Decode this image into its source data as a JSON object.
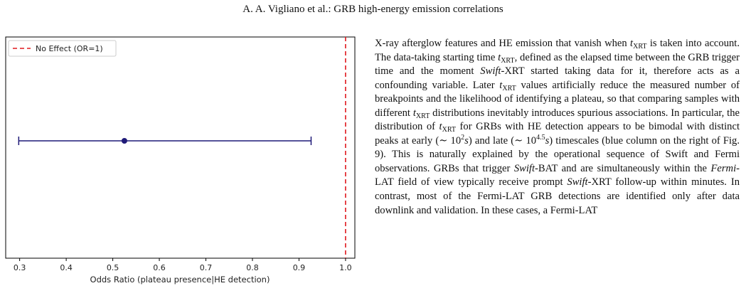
{
  "header": "A. A. Vigliano et al.: GRB high-energy emission correlations",
  "chart_data": {
    "type": "forest",
    "point": 0.525,
    "ci": [
      0.298,
      0.926
    ],
    "reference_line": {
      "value": 1.0,
      "label": "No Effect (OR=1)",
      "color": "#e0191e",
      "style": "dashed"
    },
    "xlim": [
      0.27,
      1.02
    ],
    "xticks": [
      0.3,
      0.4,
      0.5,
      0.6,
      0.7,
      0.8,
      0.9,
      1.0
    ],
    "xtick_labels": [
      "0.3",
      "0.4",
      "0.5",
      "0.6",
      "0.7",
      "0.8",
      "0.9",
      "1.0"
    ],
    "xlabel": "Odds Ratio (plateau presence|HE detection)",
    "series_color": "#1f1a78",
    "legend_placement": "top-left",
    "grid": false
  },
  "body": {
    "t1": "X-ray afterglow features and HE emission that vanish when ",
    "v1": "t",
    "s1": "XRT",
    "t2": " is taken into account. The data-taking starting time ",
    "v2": "t",
    "s2": "XRT",
    "t3": ", defined as the elapsed time between the GRB trigger time and the moment ",
    "e1": "Swift",
    "t4": "-XRT started taking data for it, therefore acts as a confounding variable. Later ",
    "v3": "t",
    "s3": "XRT",
    "t5": " values artificially reduce the measured number of breakpoints and the likelihood of identifying a plateau, so that comparing samples with different ",
    "v4": "t",
    "s4": "XRT",
    "t6": " distributions inevitably introduces spurious associations. In particular, the distribution of ",
    "v5": "t",
    "s5": "XRT",
    "t7": " for GRBs with HE detection appears to be bimodal with distinct peaks at early (∼ 10",
    "p1": "2",
    "u1": "s",
    "t8": ") and late (∼ 10",
    "p2": "4.5",
    "u2": "s",
    "t9": ") timescales (blue column on the right of Fig. 9). This is naturally explained by the operational sequence of Swift and Fermi observations. GRBs that trigger ",
    "e2": "Swift",
    "t10": "-BAT and are simultaneously within the ",
    "e3": "Fermi",
    "t11": "-LAT field of view typically receive prompt ",
    "e4": "Swift",
    "t12": "-XRT follow-up within minutes. In contrast, most of the Fermi-LAT GRB detections are identified only after data downlink and validation. In these cases, a Fermi-LAT"
  }
}
